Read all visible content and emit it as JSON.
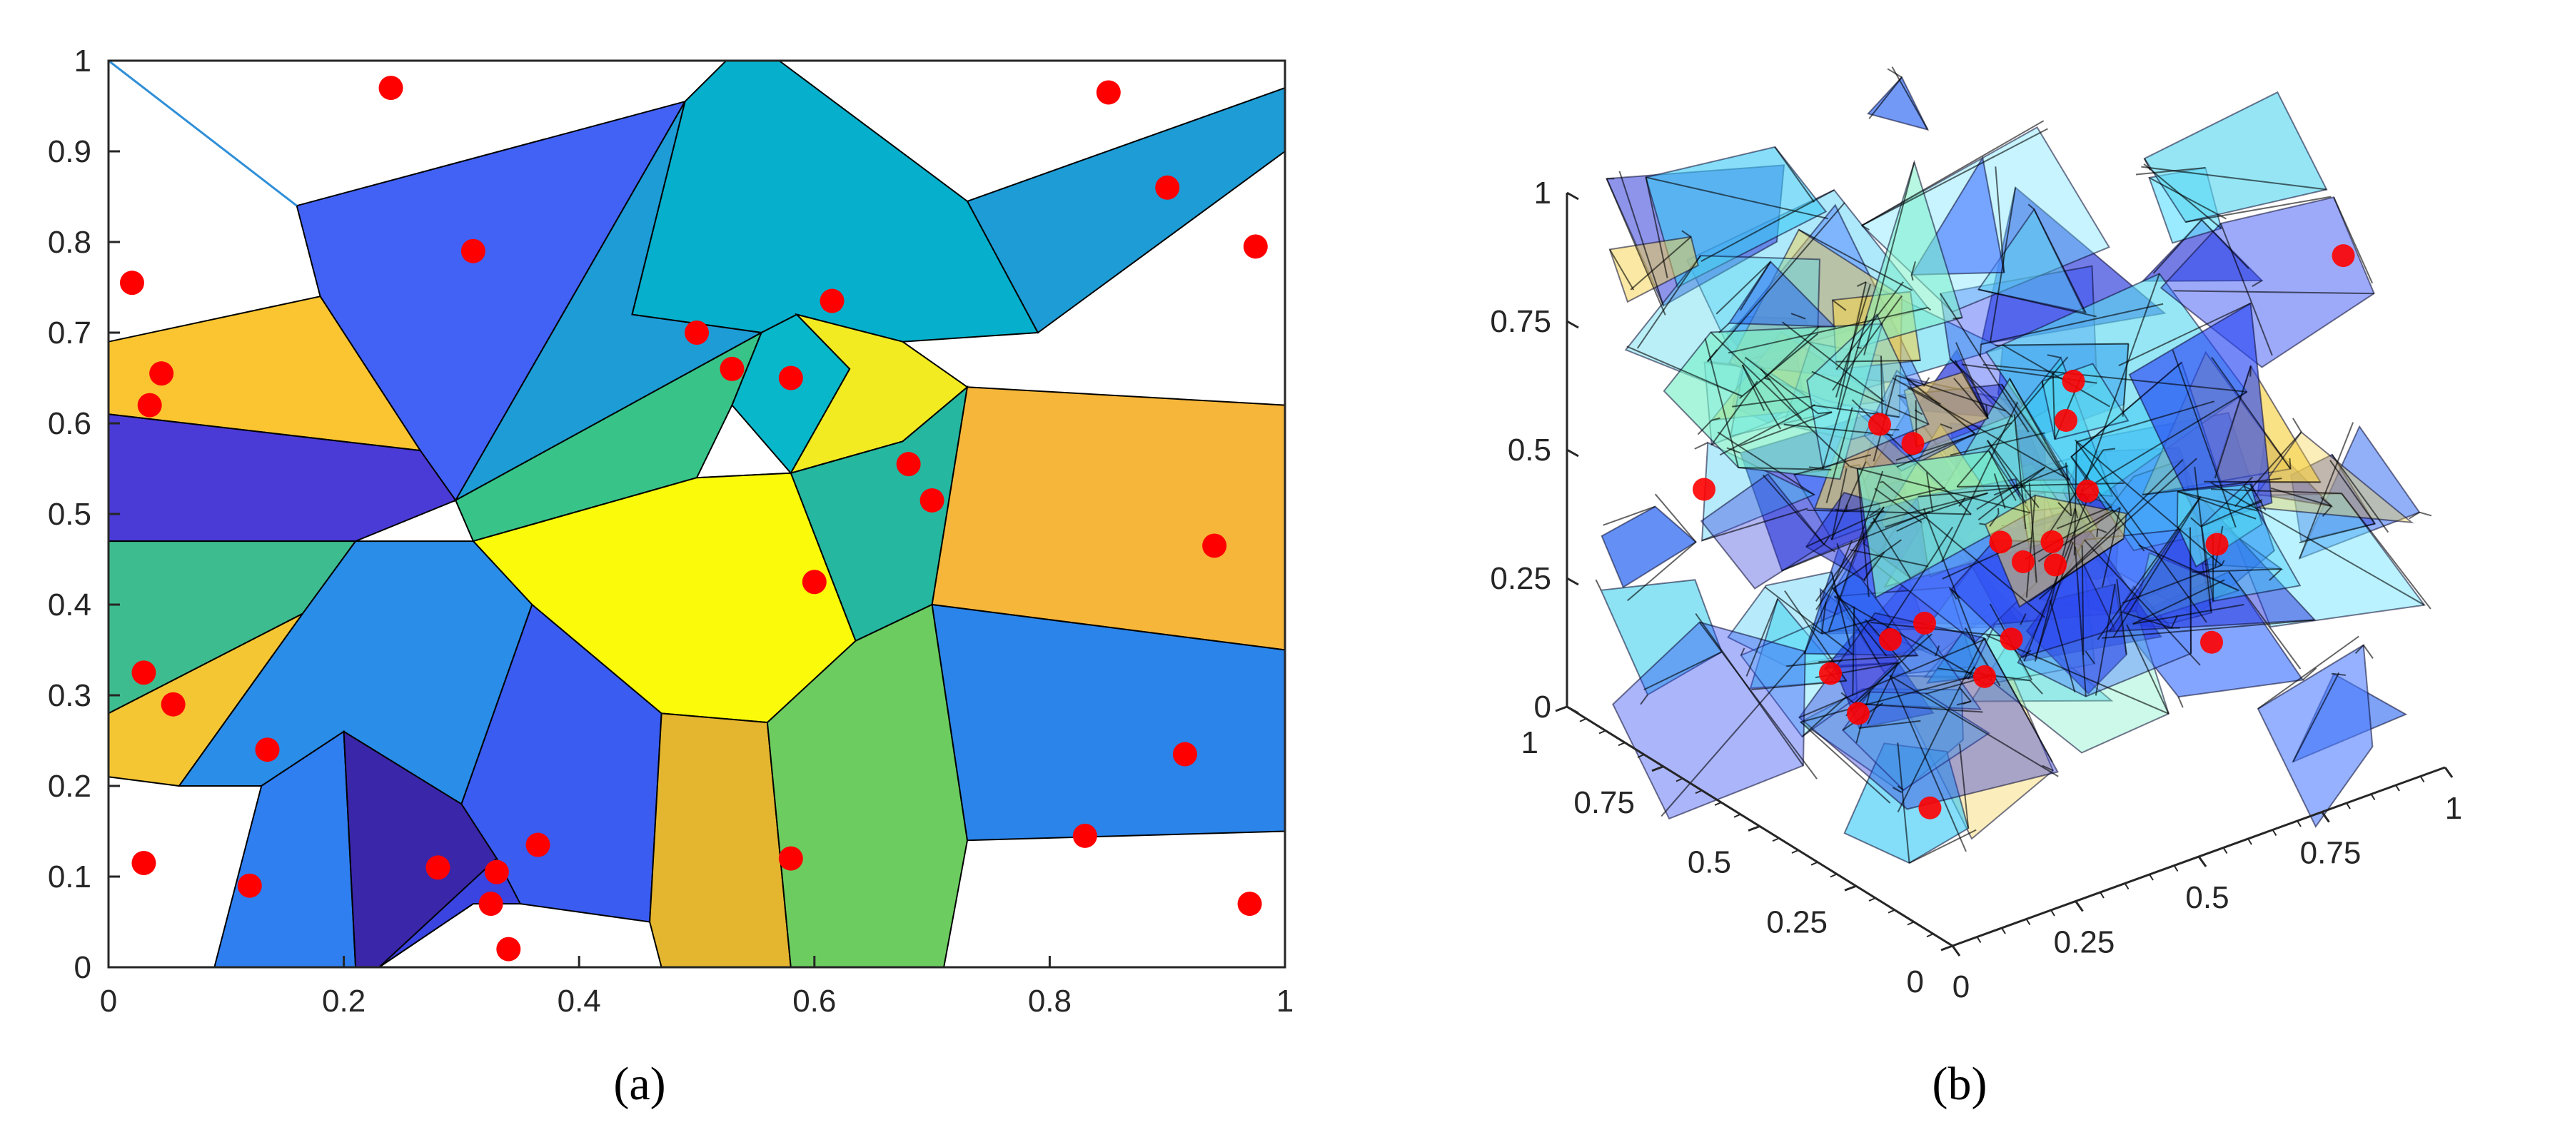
{
  "panels": [
    {
      "label": "(a)",
      "chart_data": {
        "type": "scatter",
        "title": "",
        "xlabel": "",
        "ylabel": "",
        "xlim": [
          0,
          1
        ],
        "ylim": [
          0,
          1
        ],
        "xticks": [
          "0",
          "0.2",
          "0.4",
          "0.6",
          "0.8",
          "1"
        ],
        "yticks": [
          "0",
          "0.1",
          "0.2",
          "0.3",
          "0.4",
          "0.5",
          "0.6",
          "0.7",
          "0.8",
          "0.9",
          "1"
        ],
        "grid": false,
        "series": [
          {
            "color": "#ff0000",
            "points": [
              [
                0.24,
                0.97
              ],
              [
                0.85,
                0.965
              ],
              [
                0.9,
                0.86
              ],
              [
                0.975,
                0.795
              ],
              [
                0.02,
                0.755
              ],
              [
                0.31,
                0.79
              ],
              [
                0.5,
                0.7
              ],
              [
                0.615,
                0.735
              ],
              [
                0.045,
                0.655
              ],
              [
                0.035,
                0.62
              ],
              [
                0.53,
                0.66
              ],
              [
                0.58,
                0.65
              ],
              [
                0.68,
                0.555
              ],
              [
                0.7,
                0.515
              ],
              [
                0.94,
                0.465
              ],
              [
                0.6,
                0.425
              ],
              [
                0.03,
                0.325
              ],
              [
                0.055,
                0.29
              ],
              [
                0.135,
                0.24
              ],
              [
                0.915,
                0.235
              ],
              [
                0.03,
                0.115
              ],
              [
                0.12,
                0.09
              ],
              [
                0.28,
                0.11
              ],
              [
                0.33,
                0.105
              ],
              [
                0.365,
                0.135
              ],
              [
                0.325,
                0.07
              ],
              [
                0.34,
                0.02
              ],
              [
                0.58,
                0.12
              ],
              [
                0.83,
                0.145
              ],
              [
                0.97,
                0.07
              ]
            ]
          }
        ],
        "cells": [
          {
            "color": "#4262f6",
            "polygon": [
              [
                0.16,
                0.84
              ],
              [
                0.49,
                0.955
              ],
              [
                0.295,
                0.515
              ],
              [
                0.265,
                0.57
              ],
              [
                0.18,
                0.74
              ]
            ]
          },
          {
            "color": "#06b0cc",
            "polygon": [
              [
                0.49,
                0.955
              ],
              [
                0.525,
                1
              ],
              [
                0.57,
                1
              ],
              [
                0.73,
                0.845
              ],
              [
                0.79,
                0.7
              ],
              [
                0.675,
                0.69
              ],
              [
                0.585,
                0.72
              ],
              [
                0.555,
                0.7
              ],
              [
                0.445,
                0.72
              ]
            ]
          },
          {
            "color": "#1e9cd6",
            "polygon": [
              [
                0.49,
                0.955
              ],
              [
                0.445,
                0.72
              ],
              [
                0.555,
                0.7
              ],
              [
                0.295,
                0.515
              ]
            ]
          },
          {
            "color": "#1e9cd6",
            "polygon": [
              [
                0.73,
                0.845
              ],
              [
                1,
                0.97
              ],
              [
                1,
                0.9
              ],
              [
                0.79,
                0.7
              ]
            ]
          },
          {
            "color": "#38c489",
            "polygon": [
              [
                0.295,
                0.515
              ],
              [
                0.555,
                0.7
              ],
              [
                0.53,
                0.62
              ],
              [
                0.5,
                0.54
              ],
              [
                0.31,
                0.47
              ]
            ]
          },
          {
            "color": "#08b7c9",
            "polygon": [
              [
                0.555,
                0.7
              ],
              [
                0.585,
                0.72
              ],
              [
                0.63,
                0.66
              ],
              [
                0.58,
                0.545
              ],
              [
                0.53,
                0.62
              ]
            ]
          },
          {
            "color": "#f2eb21",
            "polygon": [
              [
                0.585,
                0.72
              ],
              [
                0.675,
                0.69
              ],
              [
                0.73,
                0.64
              ],
              [
                0.675,
                0.58
              ],
              [
                0.58,
                0.545
              ],
              [
                0.63,
                0.66
              ]
            ]
          },
          {
            "color": "#fbc531",
            "polygon": [
              [
                0,
                0.69
              ],
              [
                0.18,
                0.74
              ],
              [
                0.265,
                0.57
              ],
              [
                0,
                0.61
              ]
            ]
          },
          {
            "color": "#4a3ad6",
            "polygon": [
              [
                0,
                0.61
              ],
              [
                0.265,
                0.57
              ],
              [
                0.295,
                0.515
              ],
              [
                0.21,
                0.47
              ],
              [
                0,
                0.47
              ]
            ]
          },
          {
            "color": "#3dbd8f",
            "polygon": [
              [
                0,
                0.47
              ],
              [
                0.21,
                0.47
              ],
              [
                0.165,
                0.39
              ],
              [
                0,
                0.28
              ]
            ]
          },
          {
            "color": "#f5c634",
            "polygon": [
              [
                0,
                0.28
              ],
              [
                0.165,
                0.39
              ],
              [
                0.06,
                0.2
              ],
              [
                0,
                0.21
              ]
            ]
          },
          {
            "color": "#21a9d2",
            "polygon": [
              [
                0.31,
                0.47
              ],
              [
                0.5,
                0.54
              ],
              [
                0.58,
                0.545
              ],
              [
                0.675,
                0.58
              ],
              [
                0.635,
                0.36
              ],
              [
                0.56,
                0.27
              ],
              [
                0.47,
                0.28
              ],
              [
                0.36,
                0.4
              ]
            ]
          },
          {
            "color": "#25b7a0",
            "polygon": [
              [
                0.58,
                0.545
              ],
              [
                0.675,
                0.58
              ],
              [
                0.73,
                0.64
              ],
              [
                0.7,
                0.4
              ],
              [
                0.635,
                0.36
              ]
            ]
          },
          {
            "color": "#f6b639",
            "polygon": [
              [
                0.73,
                0.64
              ],
              [
                1,
                0.62
              ],
              [
                1,
                0.35
              ],
              [
                0.7,
                0.4
              ]
            ]
          },
          {
            "color": "#fafa0a",
            "polygon": [
              [
                0.31,
                0.47
              ],
              [
                0.36,
                0.4
              ],
              [
                0.47,
                0.28
              ],
              [
                0.56,
                0.27
              ],
              [
                0.635,
                0.36
              ],
              [
                0.58,
                0.545
              ],
              [
                0.5,
                0.54
              ]
            ]
          },
          {
            "color": "#2a8de8",
            "polygon": [
              [
                0.21,
                0.47
              ],
              [
                0.31,
                0.47
              ],
              [
                0.36,
                0.4
              ],
              [
                0.3,
                0.18
              ],
              [
                0.2,
                0.26
              ],
              [
                0.13,
                0.2
              ],
              [
                0.06,
                0.2
              ],
              [
                0.165,
                0.39
              ]
            ]
          },
          {
            "color": "#3a5cf0",
            "polygon": [
              [
                0.36,
                0.4
              ],
              [
                0.47,
                0.28
              ],
              [
                0.46,
                0.05
              ],
              [
                0.35,
                0.07
              ],
              [
                0.3,
                0.18
              ]
            ]
          },
          {
            "color": "#e4b52e",
            "polygon": [
              [
                0.47,
                0.28
              ],
              [
                0.56,
                0.27
              ],
              [
                0.58,
                0
              ],
              [
                0.47,
                0
              ],
              [
                0.46,
                0.05
              ]
            ]
          },
          {
            "color": "#6ccc60",
            "polygon": [
              [
                0.56,
                0.27
              ],
              [
                0.635,
                0.36
              ],
              [
                0.7,
                0.4
              ],
              [
                0.73,
                0.14
              ],
              [
                0.71,
                0
              ],
              [
                0.58,
                0
              ]
            ]
          },
          {
            "color": "#2a84ea",
            "polygon": [
              [
                0.7,
                0.4
              ],
              [
                1,
                0.35
              ],
              [
                1,
                0.15
              ],
              [
                0.73,
                0.14
              ]
            ]
          },
          {
            "color": "#2f7ff0",
            "polygon": [
              [
                0.13,
                0.2
              ],
              [
                0.2,
                0.26
              ],
              [
                0.21,
                0
              ],
              [
                0.09,
                0
              ]
            ]
          },
          {
            "color": "#3a26a8",
            "polygon": [
              [
                0.2,
                0.26
              ],
              [
                0.3,
                0.18
              ],
              [
                0.33,
                0.12
              ],
              [
                0.31,
                0.07
              ],
              [
                0.23,
                0
              ],
              [
                0.21,
                0
              ]
            ]
          },
          {
            "color": "#3a44e0",
            "polygon": [
              [
                0.23,
                0
              ],
              [
                0.31,
                0.07
              ],
              [
                0.35,
                0.07
              ],
              [
                0.33,
                0.12
              ]
            ]
          }
        ],
        "lines": [
          {
            "color": "#2f8fd8",
            "points": [
              [
                0,
                1
              ],
              [
                0.16,
                0.84
              ]
            ]
          }
        ]
      }
    },
    {
      "label": "(b)",
      "chart_data": {
        "type": "scatter",
        "title": "",
        "xlabel": "",
        "ylabel": "",
        "zlim": [
          0,
          1
        ],
        "zticks": [
          "0",
          "0.25",
          "0.5",
          "0.75",
          "1"
        ],
        "left_axis_ticks": [
          "0",
          "0.25",
          "0.5",
          "0.75",
          "1"
        ],
        "right_axis_ticks": [
          "0",
          "0.25",
          "0.5",
          "0.75",
          "1"
        ],
        "grid": false,
        "series": [
          {
            "color": "#ff0000",
            "points": [
              [
                0.95,
                0.2,
                0.92
              ],
              [
                0.3,
                0.2,
                0.55
              ],
              [
                0.4,
                0.7,
                0.55
              ],
              [
                0.7,
                0.6,
                0.5
              ],
              [
                0.45,
                0.45,
                0.42
              ],
              [
                0.3,
                0.3,
                0.28
              ],
              [
                0.85,
                0.4,
                0.3
              ],
              [
                0.6,
                0.5,
                0.3
              ],
              [
                0.55,
                0.55,
                0.15
              ],
              [
                0.2,
                0.5,
                0.15
              ],
              [
                0.75,
                0.7,
                0.2
              ],
              [
                0.95,
                0.9,
                0.35
              ],
              [
                0.3,
                0.7,
                0.1
              ],
              [
                0.5,
                0.8,
                0.05
              ],
              [
                0.8,
                0.35,
                0.15
              ],
              [
                0.15,
                0.25,
                0.1
              ],
              [
                0.2,
                0.9,
                0.4
              ],
              [
                0.35,
                0.55,
                0.6
              ],
              [
                0.1,
                0.2,
                0.5
              ],
              [
                0.9,
                0.8,
                0.2
              ]
            ]
          }
        ]
      }
    }
  ]
}
